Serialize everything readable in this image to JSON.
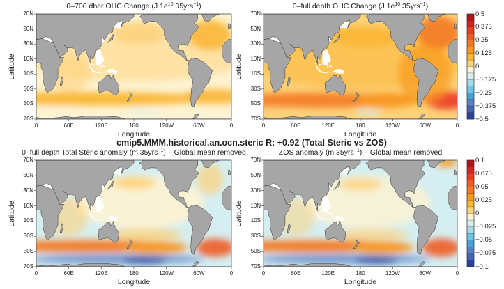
{
  "main_title": "cmip5.MMM.historical.an.ocn.steric R: +0.92 (Total Steric vs ZOS)",
  "panels": [
    {
      "title_a": "0–700 dbar OHC Change (J 1e",
      "title_sup1": "10",
      "title_b": " 35yrs",
      "title_sup2": "−1",
      "title_c": ")",
      "theme": "ohc700"
    },
    {
      "title_a": "0–full depth OHC Change (J 1e",
      "title_sup1": "10",
      "title_b": " 35yrs",
      "title_sup2": "−1",
      "title_c": ")",
      "theme": "ohcfull"
    },
    {
      "title_a": "0–full depth Total Steric anomaly (m 35yrs",
      "title_sup1": "",
      "title_b": "",
      "title_sup2": "−1",
      "title_c": ") – Global mean removed",
      "theme": "steric"
    },
    {
      "title_a": "ZOS anomaly (m 35yrs",
      "title_sup1": "",
      "title_b": "",
      "title_sup2": "−1",
      "title_c": ") – Global mean removed",
      "theme": "zos"
    }
  ],
  "axes": {
    "ylabel": "Latitude",
    "xlabel": "Longitude",
    "lat_ticks": [
      "70N",
      "50N",
      "30N",
      "10N",
      "10S",
      "30S",
      "50S",
      "70S"
    ],
    "lon_ticks": [
      "0",
      "60E",
      "120E",
      "180",
      "120W",
      "60W",
      "0"
    ]
  },
  "colorbars": [
    {
      "labels": [
        "0.5",
        "0.375",
        "0.25",
        "0.125",
        "0",
        "−0.125",
        "−0.25",
        "−0.375",
        "−0.5"
      ]
    },
    {
      "labels": [
        "0.1",
        "0.075",
        "0.05",
        "0.025",
        "0",
        "−0.025",
        "−0.05",
        "−0.075",
        "−0.1"
      ]
    }
  ],
  "palette": [
    "#8e0c17",
    "#b3141c",
    "#dc1f1f",
    "#ec3a22",
    "#f05b25",
    "#f47a22",
    "#f8991f",
    "#fbb634",
    "#fdd27a",
    "#fef3d2",
    "#d5eef1",
    "#a6dce6",
    "#70c4e4",
    "#4aa0d6",
    "#5a80c4",
    "#4464ae",
    "#2c4299",
    "#1c2a7a"
  ],
  "land_color": "#a6a6a6"
}
